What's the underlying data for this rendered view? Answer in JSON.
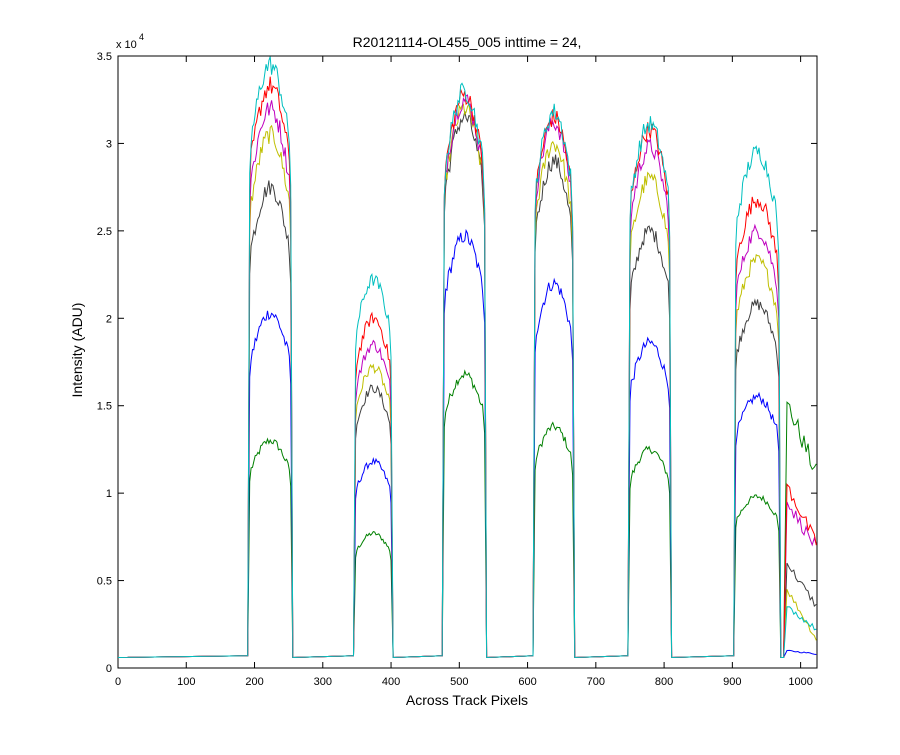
{
  "chart_data": {
    "type": "line",
    "title": "R20121114-OL455_005 inttime = 24,",
    "xlabel": "Across Track Pixels",
    "ylabel": "Intensity (ADU)",
    "y_exponent_label": "x 10",
    "y_exponent_power": "4",
    "xlim": [
      0,
      1024
    ],
    "ylim": [
      0,
      3.5
    ],
    "xticks": [
      0,
      100,
      200,
      300,
      400,
      500,
      600,
      700,
      800,
      900,
      1000
    ],
    "yticks": [
      0,
      0.5,
      1,
      1.5,
      2,
      2.5,
      3,
      3.5
    ],
    "yticklabels": [
      "0",
      "0.5",
      "1",
      "1.5",
      "2",
      "2.5",
      "3",
      "3.5"
    ],
    "grid": false,
    "legend": "none",
    "baseline": 0.06,
    "plateaus": [
      {
        "start": 193,
        "end": 253
      },
      {
        "start": 348,
        "end": 400
      },
      {
        "start": 478,
        "end": 537
      },
      {
        "start": 611,
        "end": 666
      },
      {
        "start": 750,
        "end": 808
      },
      {
        "start": 905,
        "end": 968
      }
    ],
    "series": [
      {
        "color": "#008000",
        "values": [
          1.3,
          0.77,
          1.68,
          1.38,
          1.25,
          0.98
        ],
        "tail": [
          1.52,
          1.15,
          1.1
        ]
      },
      {
        "color": "#0000ff",
        "values": [
          2.03,
          1.18,
          2.47,
          2.2,
          1.86,
          1.55
        ],
        "tail": [
          0.1,
          0.08,
          0.08
        ]
      },
      {
        "color": "#3f3f3f",
        "values": [
          2.75,
          1.6,
          3.15,
          2.9,
          2.5,
          2.08
        ],
        "tail": [
          0.6,
          0.48,
          0.35
        ]
      },
      {
        "color": "#bfbf00",
        "values": [
          3.05,
          1.72,
          3.2,
          3.0,
          2.8,
          2.33
        ],
        "tail": [
          0.45,
          0.28,
          0.16
        ]
      },
      {
        "color": "#bf00bf",
        "values": [
          3.2,
          1.85,
          3.25,
          3.12,
          2.98,
          2.5
        ],
        "tail": [
          0.95,
          0.75,
          0.68
        ]
      },
      {
        "color": "#ff0000",
        "values": [
          3.33,
          2.0,
          3.28,
          3.15,
          3.08,
          2.68
        ],
        "tail": [
          1.05,
          0.85,
          0.7
        ]
      },
      {
        "color": "#00bfbf",
        "values": [
          3.45,
          2.22,
          3.3,
          3.18,
          3.11,
          2.95
        ],
        "tail": [
          0.35,
          0.28,
          0.22
        ]
      }
    ]
  }
}
